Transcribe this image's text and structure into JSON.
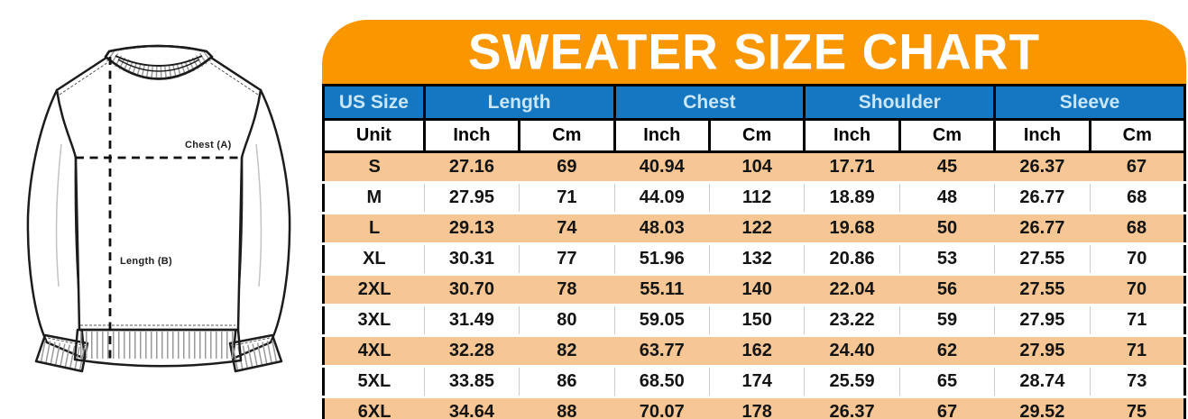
{
  "colors": {
    "banner_orange": "#FA9600",
    "header_blue": "#1577C2",
    "header_text": "#C9E6FA",
    "row_peach": "#F6C794",
    "separator_gray": "#CCCCCC",
    "border_black": "#000000"
  },
  "diagram": {
    "chest_label": "Chest (A)",
    "length_label": "Length (B)"
  },
  "banner": {
    "title": "SWEATER SIZE CHART"
  },
  "table": {
    "size_header": "US Size",
    "unit_header": "Unit",
    "groups": [
      "Length",
      "Chest",
      "Shoulder",
      "Sleeve"
    ],
    "sub_units": [
      "Inch",
      "Cm"
    ],
    "rows": [
      {
        "size": "S",
        "values": [
          "27.16",
          "69",
          "40.94",
          "104",
          "17.71",
          "45",
          "26.37",
          "67"
        ]
      },
      {
        "size": "M",
        "values": [
          "27.95",
          "71",
          "44.09",
          "112",
          "18.89",
          "48",
          "26.77",
          "68"
        ]
      },
      {
        "size": "L",
        "values": [
          "29.13",
          "74",
          "48.03",
          "122",
          "19.68",
          "50",
          "26.77",
          "68"
        ]
      },
      {
        "size": "XL",
        "values": [
          "30.31",
          "77",
          "51.96",
          "132",
          "20.86",
          "53",
          "27.55",
          "70"
        ]
      },
      {
        "size": "2XL",
        "values": [
          "30.70",
          "78",
          "55.11",
          "140",
          "22.04",
          "56",
          "27.55",
          "70"
        ]
      },
      {
        "size": "3XL",
        "values": [
          "31.49",
          "80",
          "59.05",
          "150",
          "23.22",
          "59",
          "27.95",
          "71"
        ]
      },
      {
        "size": "4XL",
        "values": [
          "32.28",
          "82",
          "63.77",
          "162",
          "24.40",
          "62",
          "27.95",
          "71"
        ]
      },
      {
        "size": "5XL",
        "values": [
          "33.85",
          "86",
          "68.50",
          "174",
          "25.59",
          "65",
          "28.74",
          "73"
        ]
      },
      {
        "size": "6XL",
        "values": [
          "34.64",
          "88",
          "70.07",
          "178",
          "26.37",
          "67",
          "29.52",
          "75"
        ]
      }
    ]
  },
  "chart_data": {
    "type": "table",
    "title": "SWEATER SIZE CHART",
    "column_groups": [
      "US Size",
      "Length",
      "Chest",
      "Shoulder",
      "Sleeve"
    ],
    "columns": [
      "US Size",
      "Length Inch",
      "Length Cm",
      "Chest Inch",
      "Chest Cm",
      "Shoulder Inch",
      "Shoulder Cm",
      "Sleeve Inch",
      "Sleeve Cm"
    ],
    "rows": [
      [
        "S",
        "27.16",
        "69",
        "40.94",
        "104",
        "17.71",
        "45",
        "26.37",
        "67"
      ],
      [
        "M",
        "27.95",
        "71",
        "44.09",
        "112",
        "18.89",
        "48",
        "26.77",
        "68"
      ],
      [
        "L",
        "29.13",
        "74",
        "48.03",
        "122",
        "19.68",
        "50",
        "26.77",
        "68"
      ],
      [
        "XL",
        "30.31",
        "77",
        "51.96",
        "132",
        "20.86",
        "53",
        "27.55",
        "70"
      ],
      [
        "2XL",
        "30.70",
        "78",
        "55.11",
        "140",
        "22.04",
        "56",
        "27.55",
        "70"
      ],
      [
        "3XL",
        "31.49",
        "80",
        "59.05",
        "150",
        "23.22",
        "59",
        "27.95",
        "71"
      ],
      [
        "4XL",
        "32.28",
        "82",
        "63.77",
        "162",
        "24.40",
        "62",
        "27.95",
        "71"
      ],
      [
        "5XL",
        "33.85",
        "86",
        "68.50",
        "174",
        "25.59",
        "65",
        "28.74",
        "73"
      ],
      [
        "6XL",
        "34.64",
        "88",
        "70.07",
        "178",
        "26.37",
        "67",
        "29.52",
        "75"
      ]
    ]
  }
}
